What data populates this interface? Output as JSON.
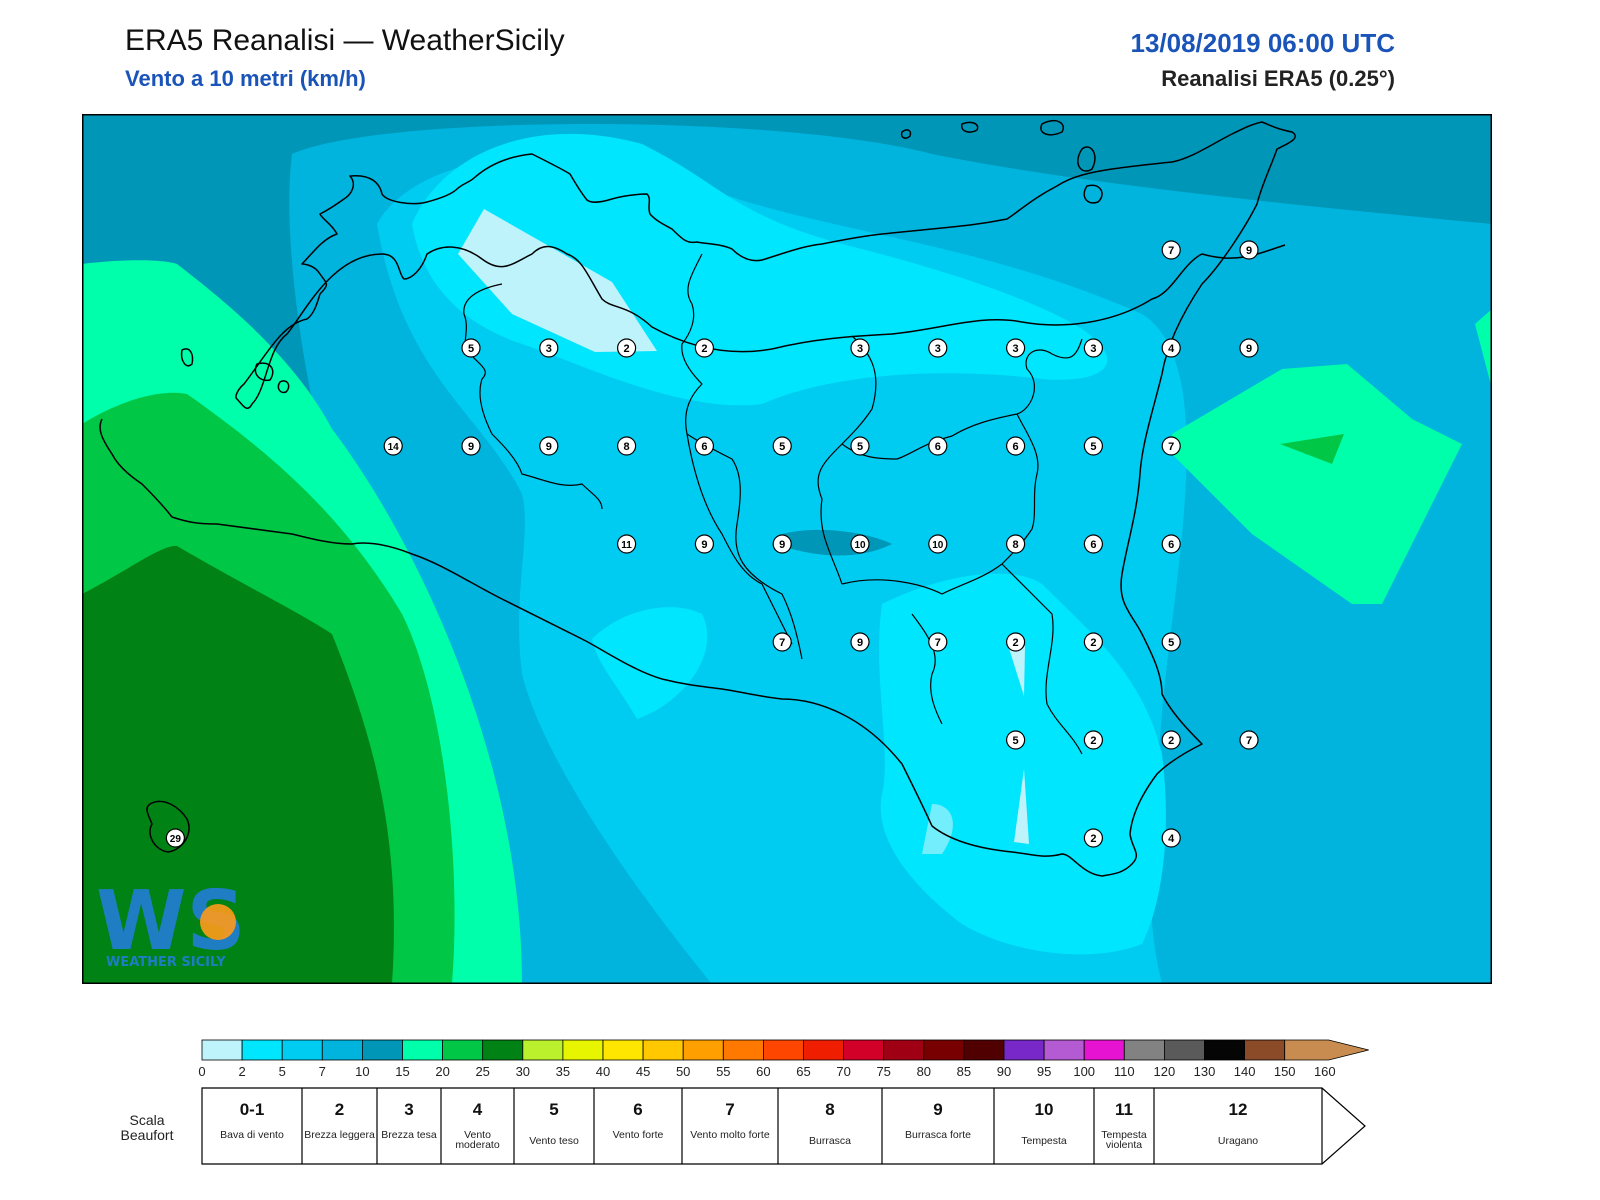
{
  "header": {
    "title": "ERA5 Reanalisi — WeatherSicily",
    "subtitle": "Vento a 10 metri (km/h)",
    "datetime": "13/08/2019 06:00 UTC",
    "model": "Reanalisi ERA5 (0.25°)"
  },
  "logo": {
    "text": "WS",
    "caption": "WEATHER SICILY"
  },
  "map": {
    "region": "Sicilia",
    "wind_labels": [
      {
        "value": "7",
        "lon": 15.2,
        "lat": 38.25
      },
      {
        "value": "9",
        "lon": 15.45,
        "lat": 38.25
      },
      {
        "value": "5",
        "lon": 12.95,
        "lat": 38.0
      },
      {
        "value": "3",
        "lon": 13.2,
        "lat": 38.0
      },
      {
        "value": "2",
        "lon": 13.45,
        "lat": 38.0
      },
      {
        "value": "2",
        "lon": 13.7,
        "lat": 38.0
      },
      {
        "value": "3",
        "lon": 14.2,
        "lat": 38.0
      },
      {
        "value": "3",
        "lon": 14.45,
        "lat": 38.0
      },
      {
        "value": "3",
        "lon": 14.7,
        "lat": 38.0
      },
      {
        "value": "3",
        "lon": 14.95,
        "lat": 38.0
      },
      {
        "value": "4",
        "lon": 15.2,
        "lat": 38.0
      },
      {
        "value": "9",
        "lon": 15.45,
        "lat": 38.0
      },
      {
        "value": "14",
        "lon": 12.7,
        "lat": 37.75
      },
      {
        "value": "9",
        "lon": 12.95,
        "lat": 37.75
      },
      {
        "value": "9",
        "lon": 13.2,
        "lat": 37.75
      },
      {
        "value": "8",
        "lon": 13.45,
        "lat": 37.75
      },
      {
        "value": "6",
        "lon": 13.7,
        "lat": 37.75
      },
      {
        "value": "5",
        "lon": 13.95,
        "lat": 37.75
      },
      {
        "value": "5",
        "lon": 14.2,
        "lat": 37.75
      },
      {
        "value": "6",
        "lon": 14.45,
        "lat": 37.75
      },
      {
        "value": "6",
        "lon": 14.7,
        "lat": 37.75
      },
      {
        "value": "5",
        "lon": 14.95,
        "lat": 37.75
      },
      {
        "value": "7",
        "lon": 15.2,
        "lat": 37.75
      },
      {
        "value": "11",
        "lon": 13.45,
        "lat": 37.5
      },
      {
        "value": "9",
        "lon": 13.7,
        "lat": 37.5
      },
      {
        "value": "9",
        "lon": 13.95,
        "lat": 37.5
      },
      {
        "value": "10",
        "lon": 14.2,
        "lat": 37.5
      },
      {
        "value": "10",
        "lon": 14.45,
        "lat": 37.5
      },
      {
        "value": "8",
        "lon": 14.7,
        "lat": 37.5
      },
      {
        "value": "6",
        "lon": 14.95,
        "lat": 37.5
      },
      {
        "value": "6",
        "lon": 15.2,
        "lat": 37.5
      },
      {
        "value": "7",
        "lon": 13.95,
        "lat": 37.25
      },
      {
        "value": "9",
        "lon": 14.2,
        "lat": 37.25
      },
      {
        "value": "7",
        "lon": 14.45,
        "lat": 37.25
      },
      {
        "value": "2",
        "lon": 14.7,
        "lat": 37.25
      },
      {
        "value": "2",
        "lon": 14.95,
        "lat": 37.25
      },
      {
        "value": "5",
        "lon": 15.2,
        "lat": 37.25
      },
      {
        "value": "5",
        "lon": 14.7,
        "lat": 37.0
      },
      {
        "value": "2",
        "lon": 14.95,
        "lat": 37.0
      },
      {
        "value": "2",
        "lon": 15.2,
        "lat": 37.0
      },
      {
        "value": "7",
        "lon": 15.45,
        "lat": 37.0
      },
      {
        "value": "2",
        "lon": 14.95,
        "lat": 36.75
      },
      {
        "value": "4",
        "lon": 15.2,
        "lat": 36.75
      },
      {
        "value": "29",
        "lon": 12.0,
        "lat": 36.75
      }
    ]
  },
  "legend": {
    "ticks": [
      "0",
      "2",
      "5",
      "7",
      "10",
      "15",
      "20",
      "25",
      "30",
      "35",
      "40",
      "45",
      "50",
      "55",
      "60",
      "65",
      "70",
      "75",
      "80",
      "85",
      "90",
      "95",
      "100",
      "110",
      "120",
      "130",
      "140",
      "150",
      "160"
    ],
    "colors": [
      "#bff3fc",
      "#00e6fe",
      "#00ccf2",
      "#00b4de",
      "#0096b8",
      "#00ffaa",
      "#00c846",
      "#008214",
      "#bbf02c",
      "#e8f500",
      "#ffe600",
      "#ffc800",
      "#ffa000",
      "#ff7800",
      "#ff4600",
      "#f01e00",
      "#d20028",
      "#a00014",
      "#780000",
      "#500000",
      "#7828c8",
      "#b45ad2",
      "#e614d2",
      "#828282",
      "#5a5a5a",
      "#050505",
      "#8c4b28",
      "#c88c50"
    ],
    "beaufort_title": "Scala Beaufort",
    "beaufort": [
      {
        "num": "0-1",
        "desc": "Bava di vento"
      },
      {
        "num": "2",
        "desc": "Brezza leggera"
      },
      {
        "num": "3",
        "desc": "Brezza tesa"
      },
      {
        "num": "4",
        "desc": "Vento moderato"
      },
      {
        "num": "5",
        "desc": "Vento teso"
      },
      {
        "num": "6",
        "desc": "Vento forte"
      },
      {
        "num": "7",
        "desc": "Vento molto forte"
      },
      {
        "num": "8",
        "desc": "Burrasca"
      },
      {
        "num": "9",
        "desc": "Burrasca forte"
      },
      {
        "num": "10",
        "desc": "Tempesta"
      },
      {
        "num": "11",
        "desc": "Tempesta violenta"
      },
      {
        "num": "12",
        "desc": "Uragano"
      }
    ]
  }
}
